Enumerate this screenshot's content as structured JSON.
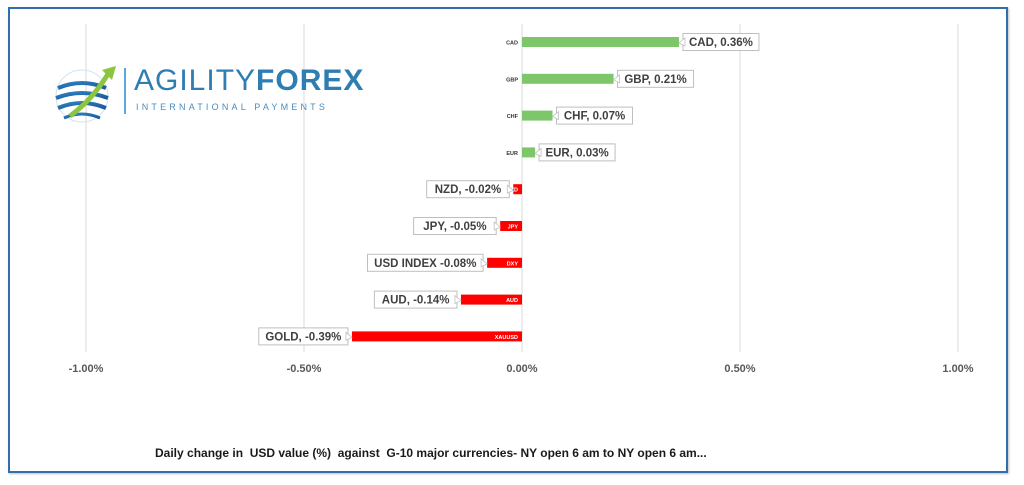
{
  "logo": {
    "name_part1": "AGILITY",
    "name_part2": "FOREX",
    "tagline": "INTERNATIONAL PAYMENTS"
  },
  "caption": "Daily change in  USD value (%)  against  G-10 major currencies- NY open 6 am to NY open 6 am...",
  "colors": {
    "positive": "#7dc66a",
    "negative": "#ff0000",
    "grid": "#d9d9d9",
    "frame": "#2f6fb0"
  },
  "chart_data": {
    "type": "bar",
    "orientation": "horizontal",
    "xlim": [
      -1.0,
      1.0
    ],
    "xticks": [
      -1.0,
      -0.5,
      0.0,
      0.5,
      1.0
    ],
    "xtick_labels": [
      "-1.00%",
      "-0.50%",
      "0.00%",
      "0.50%",
      "1.00%"
    ],
    "grid": true,
    "categories": [
      "CAD",
      "GBP",
      "CHF",
      "EUR",
      "NZD",
      "JPY",
      "DXY",
      "AUD",
      "XAUUSD"
    ],
    "values": [
      0.36,
      0.21,
      0.07,
      0.03,
      -0.02,
      -0.05,
      -0.08,
      -0.14,
      -0.39
    ],
    "data_labels": [
      "CAD, 0.36%",
      "GBP, 0.21%",
      "CHF, 0.07%",
      "EUR, 0.03%",
      "NZD, -0.02%",
      "JPY, -0.05%",
      "USD INDEX -0.08%",
      "AUD, -0.14%",
      "GOLD, -0.39%"
    ]
  }
}
